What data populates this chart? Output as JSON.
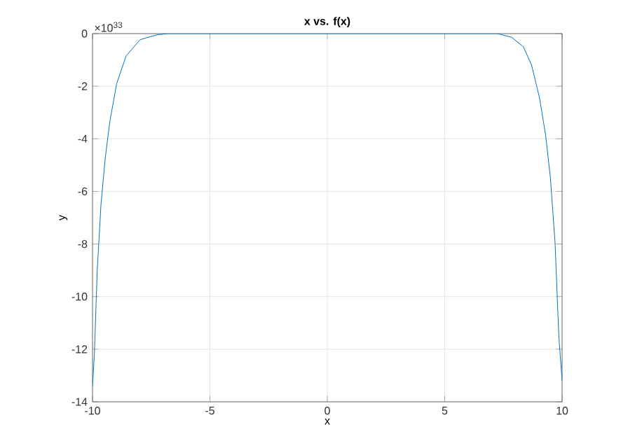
{
  "chart_data": {
    "type": "line",
    "title": "x vs. f(x)",
    "xlabel": "x",
    "ylabel": "y",
    "annotations": [
      "×10$^{33}$"
    ],
    "x": [
      -10,
      -9.92,
      -9.8,
      -9.64,
      -9.46,
      -9.26,
      -8.97,
      -8.57,
      -7.97,
      -7.27,
      -6.8,
      7.25,
      7.85,
      8.35,
      8.7,
      9.04,
      9.3,
      9.5,
      9.7,
      9.86,
      10
    ],
    "series": [
      {
        "color": "#0072bd",
        "values": [
          -13.4,
          -12.2,
          -9,
          -6.5,
          -4.75,
          -3.33,
          -1.9,
          -0.85,
          -0.23,
          -0.05,
          0,
          0,
          -0.14,
          -0.5,
          -1.2,
          -2.45,
          -3.87,
          -5.46,
          -7.95,
          -11.5,
          -13.2
        ]
      }
    ],
    "xlim": [
      -10,
      10
    ],
    "ylim": [
      -14,
      0
    ],
    "xticks": [
      -10,
      -5,
      0,
      5,
      10
    ],
    "yticks": [
      -14,
      -12,
      -10,
      -8,
      -6,
      -4,
      -2,
      0
    ],
    "grid": true,
    "marker": "none",
    "line_style": "solid"
  }
}
